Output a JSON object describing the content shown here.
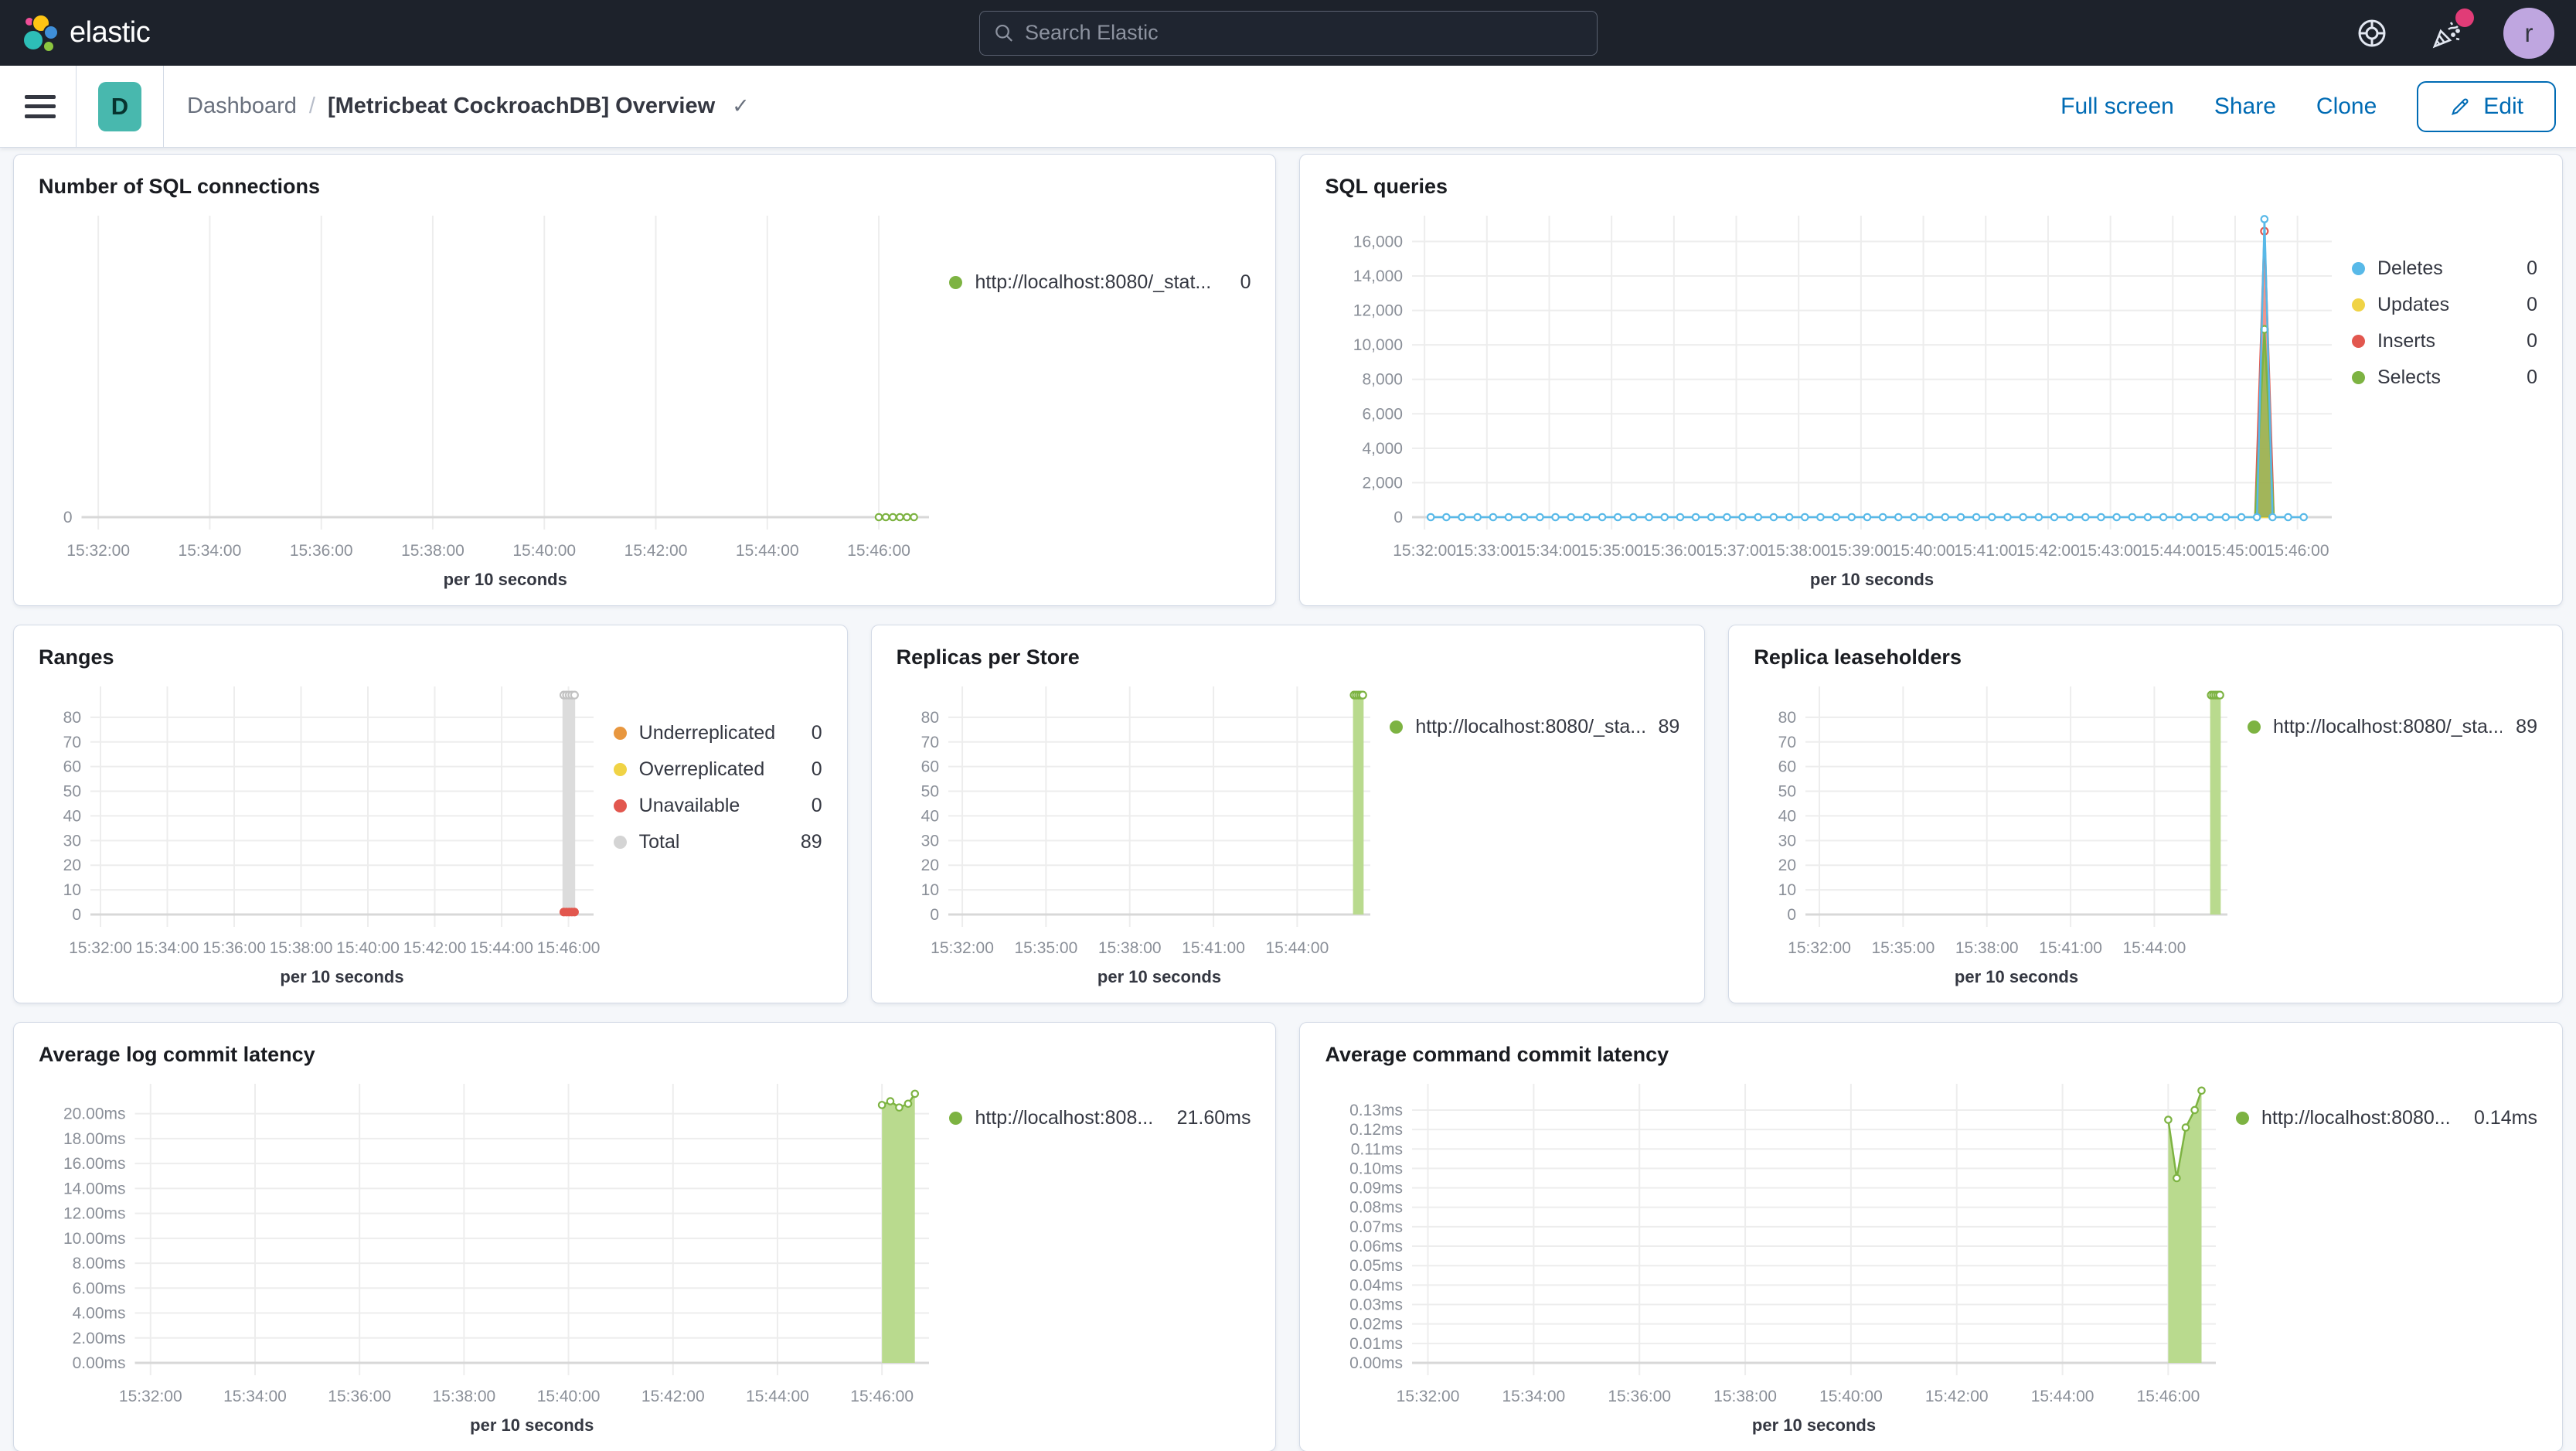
{
  "header": {
    "logo_text": "elastic",
    "search": {
      "placeholder": "Search Elastic"
    },
    "avatar_initial": "r"
  },
  "toolbar": {
    "badge": "D",
    "breadcrumb_root": "Dashboard",
    "breadcrumb_separator": "/",
    "breadcrumb_current": "[Metricbeat CockroachDB] Overview",
    "actions": {
      "full_screen": "Full screen",
      "share": "Share",
      "clone": "Clone",
      "edit": "Edit"
    }
  },
  "colors": {
    "header_bg": "#1d222b",
    "accent_pink": "#e13c77",
    "link_blue": "#006bb4",
    "badge_teal": "#48b8ae",
    "series_green": "#7db342",
    "series_green_fill": "#b9da8e",
    "series_blue": "#58b9e8",
    "series_red": "#e2574e",
    "series_yellow": "#f0d345",
    "series_orange": "#e8973f",
    "series_gray": "#dcdcdc"
  },
  "chart_data": [
    {
      "key": "sql-connections",
      "type": "line",
      "title": "Number of SQL connections",
      "x_axis_title": "per 10 seconds",
      "x": {
        "min": 31.7,
        "max": 46.9,
        "ticks": [
          [
            32,
            "15:32:00"
          ],
          [
            34,
            "15:34:00"
          ],
          [
            36,
            "15:36:00"
          ],
          [
            38,
            "15:38:00"
          ],
          [
            40,
            "15:40:00"
          ],
          [
            42,
            "15:42:00"
          ],
          [
            44,
            "15:44:00"
          ],
          [
            46,
            "15:46:00"
          ]
        ]
      },
      "y": {
        "min": 0,
        "max": 1,
        "ticks": [
          [
            0,
            "0"
          ]
        ]
      },
      "legend": [
        {
          "label": "http://localhost:8080/_stat...",
          "value": "0",
          "color": "#7db342"
        }
      ],
      "series": [
        {
          "type": "line",
          "color": "#7db342",
          "markers": true,
          "flat": {
            "from": 46.0,
            "to": 46.63,
            "step": 0.126,
            "value": 0
          }
        }
      ]
    },
    {
      "key": "sql-queries",
      "type": "line",
      "title": "SQL queries",
      "x_axis_title": "per 10 seconds",
      "x": {
        "min": 31.8,
        "max": 46.55,
        "ticks": [
          [
            32,
            "15:32:00"
          ],
          [
            33,
            "15:33:00"
          ],
          [
            34,
            "15:34:00"
          ],
          [
            35,
            "15:35:00"
          ],
          [
            36,
            "15:36:00"
          ],
          [
            37,
            "15:37:00"
          ],
          [
            38,
            "15:38:00"
          ],
          [
            39,
            "15:39:00"
          ],
          [
            40,
            "15:40:00"
          ],
          [
            41,
            "15:41:00"
          ],
          [
            42,
            "15:42:00"
          ],
          [
            43,
            "15:43:00"
          ],
          [
            44,
            "15:44:00"
          ],
          [
            45,
            "15:45:00"
          ],
          [
            46,
            "15:46:00"
          ]
        ]
      },
      "y": {
        "min": 0,
        "max": 17500,
        "ticks": [
          [
            0,
            "0"
          ],
          [
            2000,
            "2,000"
          ],
          [
            4000,
            "4,000"
          ],
          [
            6000,
            "6,000"
          ],
          [
            8000,
            "8,000"
          ],
          [
            10000,
            "10,000"
          ],
          [
            12000,
            "12,000"
          ],
          [
            14000,
            "14,000"
          ],
          [
            16000,
            "16,000"
          ]
        ]
      },
      "legend": [
        {
          "label": "Deletes",
          "value": "0",
          "color": "#58b9e8"
        },
        {
          "label": "Updates",
          "value": "0",
          "color": "#f0d345"
        },
        {
          "label": "Inserts",
          "value": "0",
          "color": "#e2574e"
        },
        {
          "label": "Selects",
          "value": "0",
          "color": "#7db342"
        }
      ],
      "series": [
        {
          "type": "line",
          "color": "#f0d345",
          "points": [
            [
              45.2,
              0
            ],
            [
              45.75,
              0
            ]
          ]
        },
        {
          "type": "area",
          "color": "#e2574e",
          "fill": "rgba(231,93,81,0.65)",
          "markers": "peak",
          "points": [
            [
              45.32,
              0
            ],
            [
              45.47,
              16600
            ],
            [
              45.62,
              0
            ]
          ]
        },
        {
          "type": "area",
          "color": "#7db342",
          "fill": "rgba(142,189,77,0.8)",
          "markers": "peak",
          "points": [
            [
              45.32,
              0
            ],
            [
              45.47,
              10900
            ],
            [
              45.62,
              0
            ]
          ]
        },
        {
          "type": "line",
          "color": "#58b9e8",
          "markers": true,
          "flat": {
            "from": 32.1,
            "to": 46.1,
            "step": 0.25,
            "value": 0
          },
          "points": [
            [
              45.47,
              17300
            ]
          ]
        }
      ]
    },
    {
      "key": "ranges",
      "type": "bar",
      "title": "Ranges",
      "x_axis_title": "per 10 seconds",
      "x": {
        "min": 31.7,
        "max": 46.75,
        "ticks": [
          [
            32,
            "15:32:00"
          ],
          [
            34,
            "15:34:00"
          ],
          [
            36,
            "15:36:00"
          ],
          [
            38,
            "15:38:00"
          ],
          [
            40,
            "15:40:00"
          ],
          [
            42,
            "15:42:00"
          ],
          [
            44,
            "15:44:00"
          ],
          [
            46,
            "15:46:00"
          ]
        ]
      },
      "y": {
        "min": 0,
        "max": 92.5,
        "ticks": [
          [
            0,
            "0"
          ],
          [
            10,
            "10"
          ],
          [
            20,
            "20"
          ],
          [
            30,
            "30"
          ],
          [
            40,
            "40"
          ],
          [
            50,
            "50"
          ],
          [
            60,
            "60"
          ],
          [
            70,
            "70"
          ],
          [
            80,
            "80"
          ]
        ]
      },
      "legend": [
        {
          "label": "Underreplicated",
          "value": "0",
          "color": "#e8973f"
        },
        {
          "label": "Overreplicated",
          "value": "0",
          "color": "#f0d345"
        },
        {
          "label": "Unavailable",
          "value": "0",
          "color": "#e2574e"
        },
        {
          "label": "Total",
          "value": "89",
          "color": "#d4d4d4"
        }
      ],
      "series": [
        {
          "type": "bar",
          "fill": "#dcdcdc",
          "x0": 45.82,
          "x1": 46.2,
          "y": 89
        },
        {
          "type": "points",
          "color": "#c2c2c2",
          "points": [
            [
              45.86,
              89
            ],
            [
              45.94,
              89
            ],
            [
              46.02,
              89
            ],
            [
              46.1,
              89
            ],
            [
              46.18,
              89
            ]
          ]
        },
        {
          "type": "points",
          "color": "#e2574e",
          "solid": true,
          "points": [
            [
              45.86,
              1
            ],
            [
              45.94,
              1
            ],
            [
              46.02,
              1
            ],
            [
              46.1,
              1
            ],
            [
              46.18,
              1
            ]
          ]
        }
      ]
    },
    {
      "key": "replicas-per-store",
      "type": "bar",
      "title": "Replicas per Store",
      "x_axis_title": "per 10 seconds",
      "x": {
        "min": 31.5,
        "max": 46.62,
        "ticks": [
          [
            32,
            "15:32:00"
          ],
          [
            35,
            "15:35:00"
          ],
          [
            38,
            "15:38:00"
          ],
          [
            41,
            "15:41:00"
          ],
          [
            44,
            "15:44:00"
          ]
        ]
      },
      "y": {
        "min": 0,
        "max": 92.5,
        "ticks": [
          [
            0,
            "0"
          ],
          [
            10,
            "10"
          ],
          [
            20,
            "20"
          ],
          [
            30,
            "30"
          ],
          [
            40,
            "40"
          ],
          [
            50,
            "50"
          ],
          [
            60,
            "60"
          ],
          [
            70,
            "70"
          ],
          [
            80,
            "80"
          ]
        ]
      },
      "legend": [
        {
          "label": "http://localhost:8080/_sta...",
          "value": "89",
          "color": "#7db342"
        }
      ],
      "series": [
        {
          "type": "bar",
          "fill": "#b9da8e",
          "x0": 46.0,
          "x1": 46.38,
          "y": 89
        },
        {
          "type": "points",
          "color": "#7db342",
          "points": [
            [
              46.04,
              89
            ],
            [
              46.12,
              89
            ],
            [
              46.2,
              89
            ],
            [
              46.28,
              89
            ],
            [
              46.35,
              89
            ]
          ]
        }
      ]
    },
    {
      "key": "replica-leaseholders",
      "type": "bar",
      "title": "Replica leaseholders",
      "x_axis_title": "per 10 seconds",
      "x": {
        "min": 31.5,
        "max": 46.62,
        "ticks": [
          [
            32,
            "15:32:00"
          ],
          [
            35,
            "15:35:00"
          ],
          [
            38,
            "15:38:00"
          ],
          [
            41,
            "15:41:00"
          ],
          [
            44,
            "15:44:00"
          ]
        ]
      },
      "y": {
        "min": 0,
        "max": 92.5,
        "ticks": [
          [
            0,
            "0"
          ],
          [
            10,
            "10"
          ],
          [
            20,
            "20"
          ],
          [
            30,
            "30"
          ],
          [
            40,
            "40"
          ],
          [
            50,
            "50"
          ],
          [
            60,
            "60"
          ],
          [
            70,
            "70"
          ],
          [
            80,
            "80"
          ]
        ]
      },
      "legend": [
        {
          "label": "http://localhost:8080/_sta...",
          "value": "89",
          "color": "#7db342"
        }
      ],
      "series": [
        {
          "type": "bar",
          "fill": "#b9da8e",
          "x0": 46.0,
          "x1": 46.38,
          "y": 89
        },
        {
          "type": "points",
          "color": "#7db342",
          "points": [
            [
              46.04,
              89
            ],
            [
              46.12,
              89
            ],
            [
              46.2,
              89
            ],
            [
              46.28,
              89
            ],
            [
              46.35,
              89
            ]
          ]
        }
      ]
    },
    {
      "key": "avg-log-commit-latency",
      "type": "area",
      "title": "Average log commit latency",
      "x_axis_title": "per 10 seconds",
      "x": {
        "min": 31.7,
        "max": 46.9,
        "ticks": [
          [
            32,
            "15:32:00"
          ],
          [
            34,
            "15:34:00"
          ],
          [
            36,
            "15:36:00"
          ],
          [
            38,
            "15:38:00"
          ],
          [
            40,
            "15:40:00"
          ],
          [
            42,
            "15:42:00"
          ],
          [
            44,
            "15:44:00"
          ],
          [
            46,
            "15:46:00"
          ]
        ]
      },
      "y": {
        "min": 0,
        "max": 22.4,
        "ticks": [
          [
            0,
            "0.00ms"
          ],
          [
            2,
            "2.00ms"
          ],
          [
            4,
            "4.00ms"
          ],
          [
            6,
            "6.00ms"
          ],
          [
            8,
            "8.00ms"
          ],
          [
            10,
            "10.00ms"
          ],
          [
            12,
            "12.00ms"
          ],
          [
            14,
            "14.00ms"
          ],
          [
            16,
            "16.00ms"
          ],
          [
            18,
            "18.00ms"
          ],
          [
            20,
            "20.00ms"
          ]
        ]
      },
      "legend": [
        {
          "label": "http://localhost:808...",
          "value": "21.60ms",
          "color": "#7db342"
        }
      ],
      "series": [
        {
          "type": "area",
          "color": "#7db342",
          "fill": "#b9da8e",
          "markers": true,
          "points": [
            [
              46.0,
              20.7
            ],
            [
              46.16,
              21.0
            ],
            [
              46.33,
              20.5
            ],
            [
              46.5,
              20.8
            ],
            [
              46.63,
              21.6
            ]
          ]
        }
      ]
    },
    {
      "key": "avg-command-commit-latency",
      "type": "area",
      "title": "Average command commit latency",
      "x_axis_title": "per 10 seconds",
      "x": {
        "min": 31.7,
        "max": 46.9,
        "ticks": [
          [
            32,
            "15:32:00"
          ],
          [
            34,
            "15:34:00"
          ],
          [
            36,
            "15:36:00"
          ],
          [
            38,
            "15:38:00"
          ],
          [
            40,
            "15:40:00"
          ],
          [
            42,
            "15:42:00"
          ],
          [
            44,
            "15:44:00"
          ],
          [
            46,
            "15:46:00"
          ]
        ]
      },
      "y": {
        "min": 0,
        "max": 0.1435,
        "ticks": [
          [
            0,
            "0.00ms"
          ],
          [
            0.01,
            "0.01ms"
          ],
          [
            0.02,
            "0.02ms"
          ],
          [
            0.03,
            "0.03ms"
          ],
          [
            0.04,
            "0.04ms"
          ],
          [
            0.05,
            "0.05ms"
          ],
          [
            0.06,
            "0.06ms"
          ],
          [
            0.07,
            "0.07ms"
          ],
          [
            0.08,
            "0.08ms"
          ],
          [
            0.09,
            "0.09ms"
          ],
          [
            0.1,
            "0.10ms"
          ],
          [
            0.11,
            "0.11ms"
          ],
          [
            0.12,
            "0.12ms"
          ],
          [
            0.13,
            "0.13ms"
          ]
        ]
      },
      "legend": [
        {
          "label": "http://localhost:8080...",
          "value": "0.14ms",
          "color": "#7db342"
        }
      ],
      "series": [
        {
          "type": "area",
          "color": "#7db342",
          "fill": "#b9da8e",
          "markers": true,
          "points": [
            [
              46.0,
              0.125
            ],
            [
              46.16,
              0.095
            ],
            [
              46.33,
              0.121
            ],
            [
              46.5,
              0.13
            ],
            [
              46.63,
              0.14
            ]
          ]
        }
      ]
    }
  ]
}
